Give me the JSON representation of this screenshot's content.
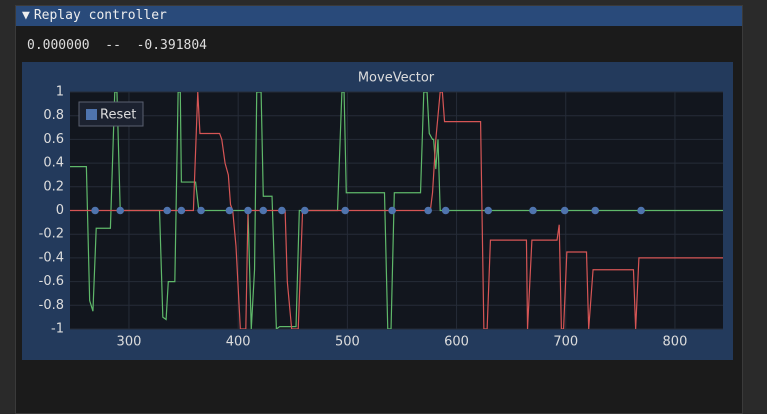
{
  "window": {
    "title": "Replay controller"
  },
  "status": "0.000000  --  -0.391804",
  "chart_data": {
    "type": "line",
    "title": "MoveVector",
    "xlim": [
      246,
      844
    ],
    "ylim": [
      -1,
      1
    ],
    "xticks": [
      300,
      400,
      500,
      600,
      700,
      800
    ],
    "yticks": [
      -1,
      -0.8,
      -0.6,
      -0.4,
      -0.2,
      0,
      0.2,
      0.4,
      0.6,
      0.8,
      1
    ],
    "grid": true,
    "legend": "northwest",
    "series": [
      {
        "color": "#5fb86a",
        "type": "line",
        "x": [
          246,
          261,
          264,
          267,
          270,
          283,
          287,
          289,
          292,
          328,
          331,
          334,
          336,
          342,
          345,
          347,
          348,
          361,
          364,
          409,
          412,
          415,
          417,
          421,
          423,
          431,
          435,
          438,
          453,
          456,
          491,
          495,
          497,
          499,
          534,
          537,
          540,
          543,
          567,
          570,
          573,
          575,
          578,
          579,
          581,
          583,
          585,
          844
        ],
        "values": [
          0.37,
          0.37,
          -0.76,
          -0.85,
          -0.15,
          -0.15,
          1,
          1,
          0,
          0,
          -0.9,
          -0.92,
          -0.6,
          -0.6,
          1,
          1,
          0.24,
          0.24,
          0,
          0,
          -1,
          -0.5,
          1,
          1,
          0.12,
          0.12,
          -1,
          -0.98,
          -0.98,
          0,
          0,
          1,
          1,
          0.15,
          0.15,
          -1,
          -1,
          0.15,
          0.15,
          1,
          1,
          0.65,
          0.6,
          0.6,
          0.35,
          0.6,
          0,
          0
        ]
      },
      {
        "color": "#d65555",
        "type": "line",
        "x": [
          246,
          359,
          363,
          365,
          383,
          385,
          388,
          391,
          393,
          395,
          398,
          402,
          407,
          409,
          443,
          445,
          449,
          455,
          459,
          576,
          578,
          581,
          585,
          587,
          589,
          622,
          625,
          628,
          631,
          664,
          665,
          669,
          692,
          694,
          696,
          698,
          701,
          719,
          721,
          725,
          762,
          764,
          767,
          844
        ],
        "values": [
          0,
          0,
          1,
          0.65,
          0.65,
          0.6,
          0.4,
          0.3,
          0.05,
          0,
          -0.3,
          -1,
          -1,
          0,
          0,
          -0.6,
          -1,
          -1,
          0,
          0,
          0.15,
          0.6,
          1,
          1,
          0.75,
          0.75,
          -1,
          -1,
          -0.25,
          -0.25,
          -1,
          -0.25,
          -0.25,
          -0.12,
          -1,
          -1,
          -0.35,
          -0.35,
          -1,
          -0.5,
          -0.5,
          -1,
          -0.4,
          -0.4
        ]
      },
      {
        "name": "Reset",
        "color": "#4f74ae",
        "type": "scatter",
        "x": [
          269,
          292,
          335,
          348,
          366,
          392,
          409,
          423,
          440,
          461,
          498,
          541,
          574,
          590,
          629,
          670,
          699,
          727,
          769
        ],
        "values": [
          0,
          0,
          0,
          0,
          0,
          0,
          0,
          0,
          0,
          0,
          0,
          0,
          0,
          0,
          0,
          0,
          0,
          0,
          0
        ]
      }
    ]
  }
}
